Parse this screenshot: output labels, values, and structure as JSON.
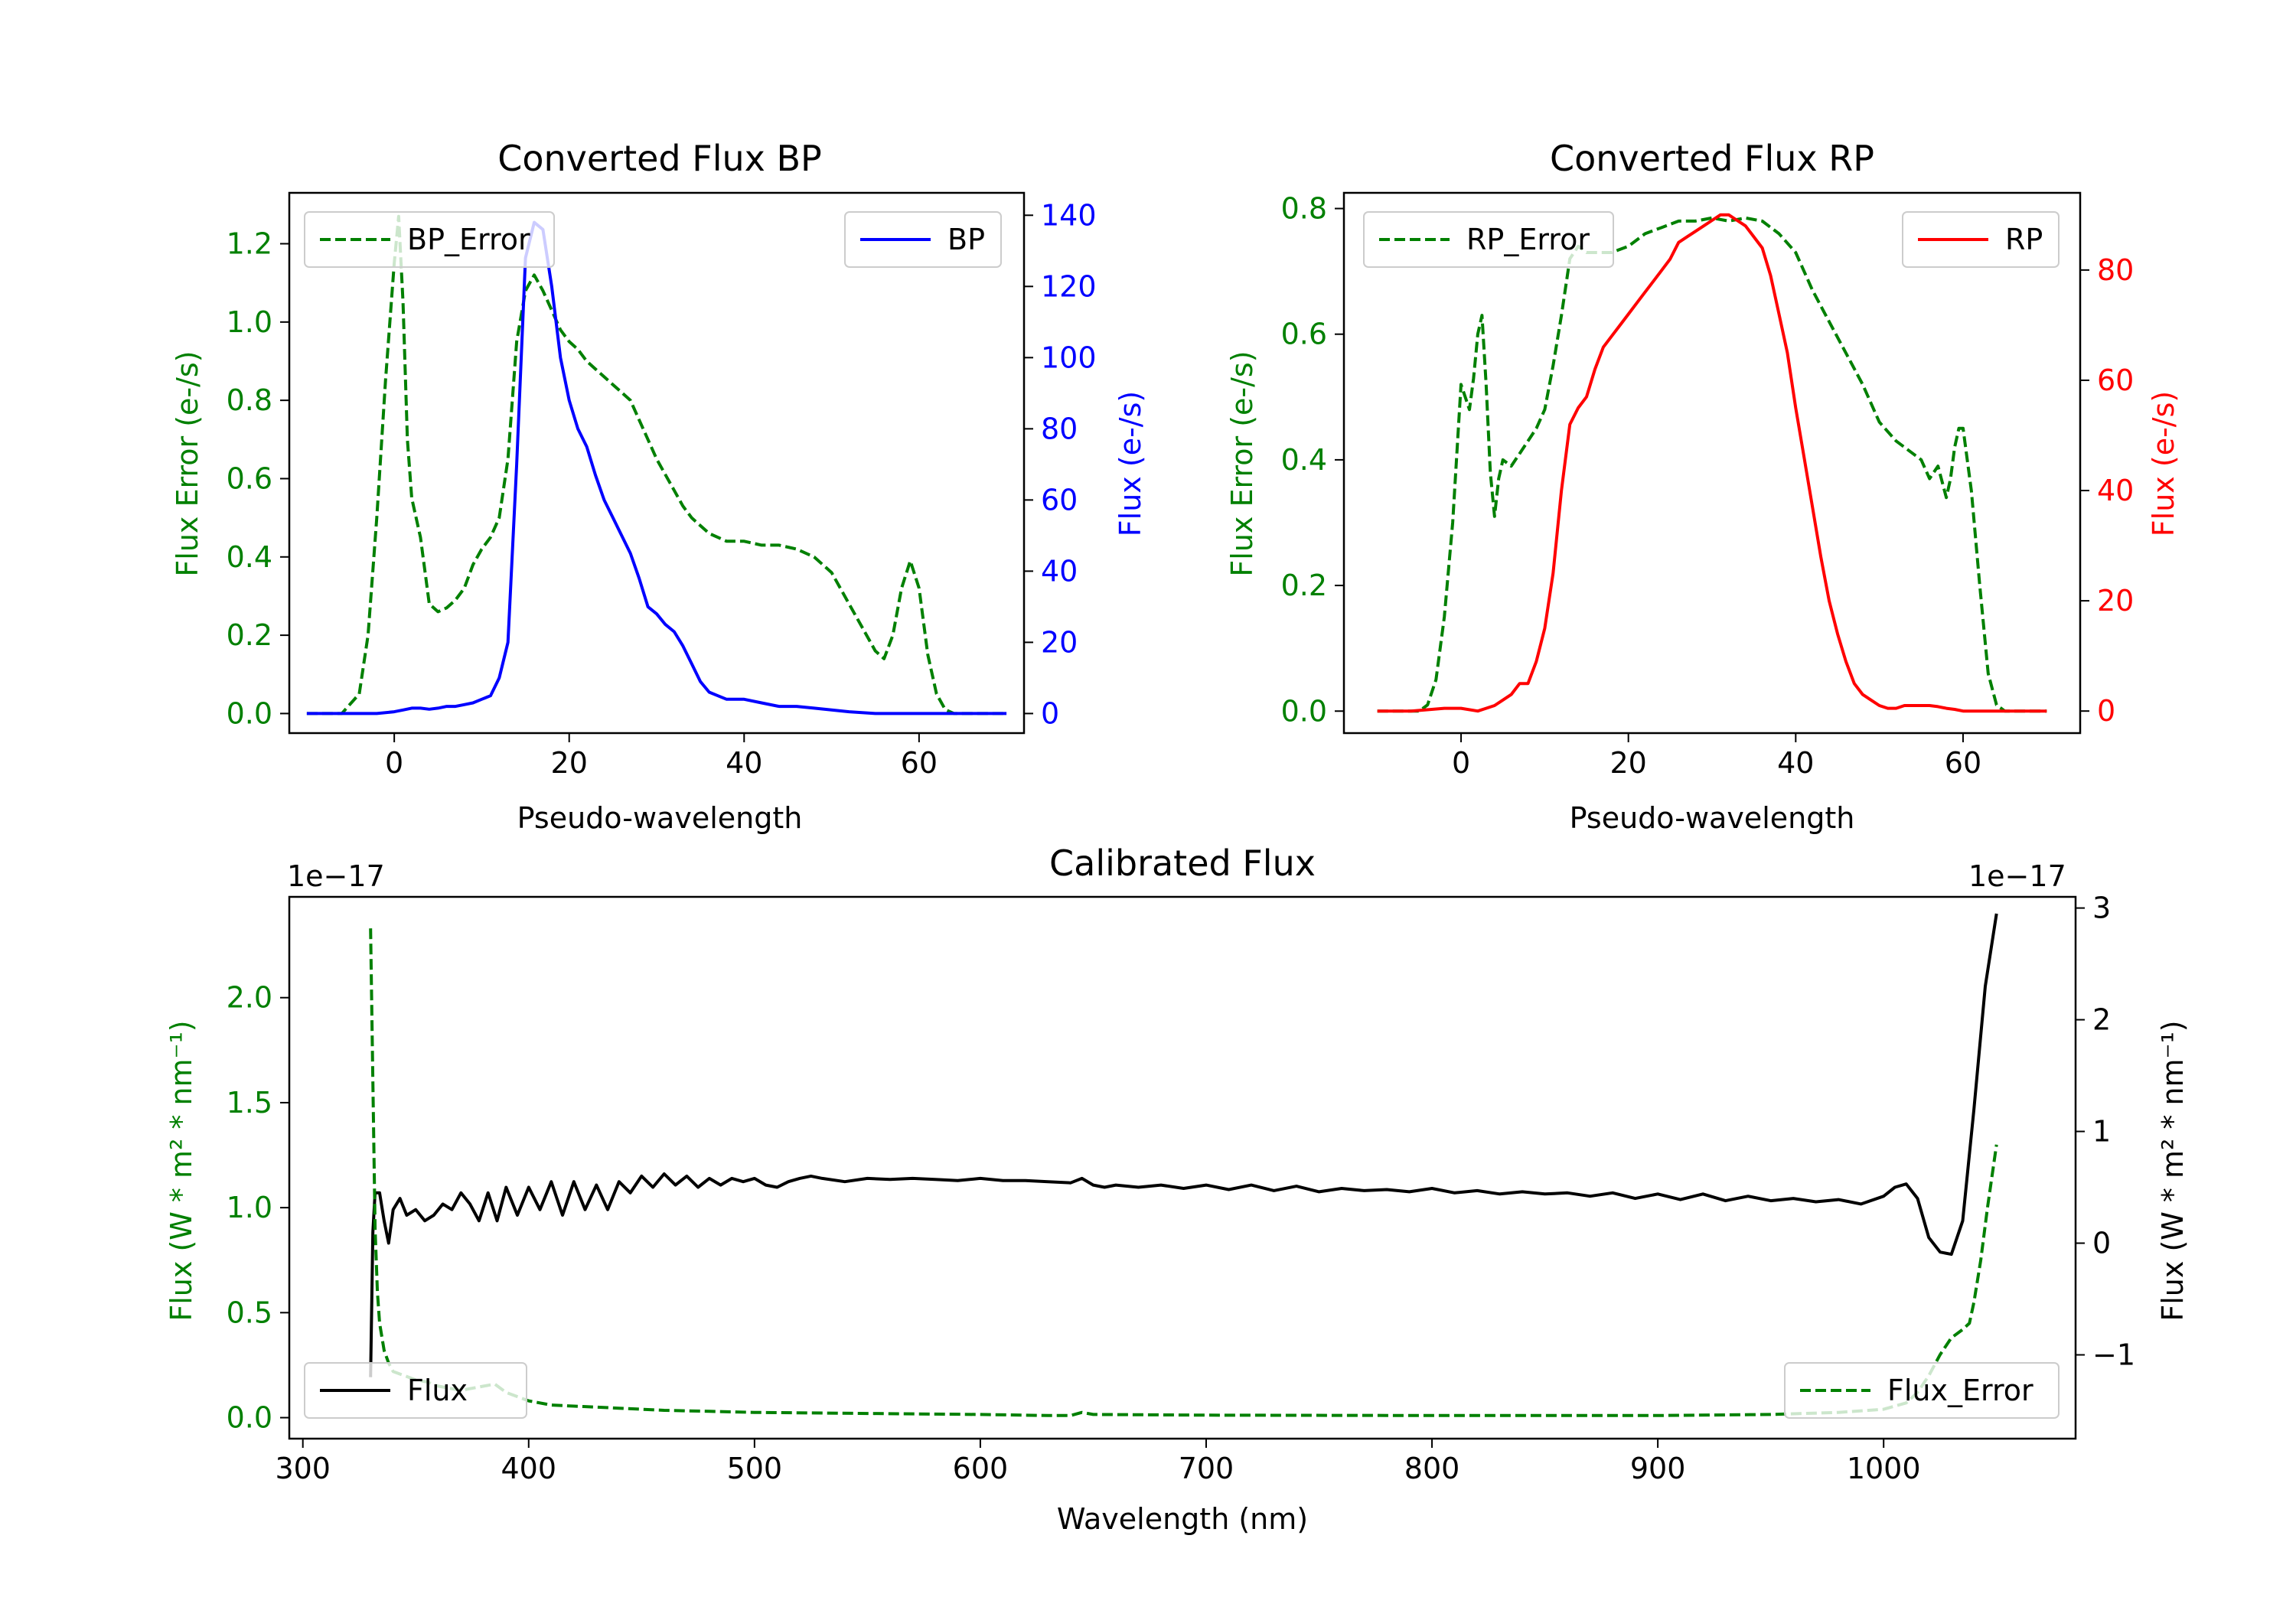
{
  "figure": {
    "background": "#ffffff"
  },
  "chart_data": [
    {
      "type": "line",
      "title": "Converted Flux BP",
      "xlabel": "Pseudo-wavelength",
      "ylabel_left": "Flux Error (e-/s)",
      "ylabel_right": "Flux (e-/s)",
      "xlim": [
        -12,
        72
      ],
      "ylim_left": [
        -0.05,
        1.33
      ],
      "ylim_right": [
        -5.5,
        146.3
      ],
      "xticks": [
        0,
        20,
        40,
        60
      ],
      "xtick_labels": [
        "0",
        "20",
        "40",
        "60"
      ],
      "yticks_left": [
        0,
        0.2,
        0.4,
        0.6,
        0.8,
        1.0,
        1.2
      ],
      "ytick_labels_left": [
        "0.0",
        "0.2",
        "0.4",
        "0.6",
        "0.8",
        "1.0",
        "1.2"
      ],
      "yticks_right": [
        0,
        20,
        40,
        60,
        80,
        100,
        120,
        140
      ],
      "ytick_labels_right": [
        "0",
        "20",
        "40",
        "60",
        "80",
        "100",
        "120",
        "140"
      ],
      "left_color": "#008000",
      "right_color": "#0000ff",
      "grid": false,
      "series": [
        {
          "name": "BP_Error",
          "axis": "left",
          "color": "#008000",
          "style": "dashed",
          "legend": "top-left",
          "x": [
            -10,
            -6,
            -4,
            -3,
            -2,
            -1,
            0,
            0.5,
            1,
            1.5,
            2,
            3,
            4,
            5,
            6,
            7,
            8,
            9,
            10,
            11,
            12,
            13,
            14,
            15,
            16,
            17,
            18,
            19,
            20,
            21,
            22,
            23,
            24,
            25,
            26,
            27,
            28,
            29,
            30,
            31,
            32,
            33,
            34,
            35,
            36,
            37,
            38,
            40,
            42,
            44,
            46,
            48,
            50,
            52,
            54,
            55,
            56,
            57,
            58,
            59,
            60,
            61,
            62,
            63,
            64,
            65,
            66,
            70
          ],
          "y": [
            0,
            0,
            0.05,
            0.2,
            0.5,
            0.85,
            1.15,
            1.27,
            1.05,
            0.7,
            0.55,
            0.45,
            0.28,
            0.26,
            0.27,
            0.29,
            0.32,
            0.38,
            0.42,
            0.45,
            0.5,
            0.65,
            0.95,
            1.08,
            1.12,
            1.08,
            1.03,
            0.98,
            0.95,
            0.93,
            0.9,
            0.88,
            0.86,
            0.84,
            0.82,
            0.8,
            0.75,
            0.7,
            0.65,
            0.61,
            0.57,
            0.53,
            0.5,
            0.48,
            0.46,
            0.45,
            0.44,
            0.44,
            0.43,
            0.43,
            0.42,
            0.4,
            0.36,
            0.28,
            0.2,
            0.16,
            0.14,
            0.2,
            0.32,
            0.39,
            0.32,
            0.15,
            0.05,
            0.01,
            0,
            0,
            0,
            0
          ]
        },
        {
          "name": "BP",
          "axis": "right",
          "color": "#0000ff",
          "style": "solid",
          "legend": "top-right",
          "x": [
            -10,
            -5,
            -2,
            0,
            1,
            2,
            3,
            4,
            5,
            6,
            7,
            8,
            9,
            10,
            11,
            12,
            13,
            14,
            15,
            16,
            17,
            18,
            19,
            20,
            21,
            22,
            23,
            24,
            25,
            26,
            27,
            28,
            29,
            30,
            31,
            32,
            33,
            34,
            35,
            36,
            37,
            38,
            40,
            42,
            44,
            46,
            48,
            50,
            52,
            55,
            58,
            60,
            62,
            65,
            70
          ],
          "y": [
            0,
            0,
            0,
            0.5,
            1,
            1.5,
            1.5,
            1.2,
            1.5,
            2,
            2,
            2.5,
            3,
            4,
            5,
            10,
            20,
            70,
            128,
            138,
            136,
            120,
            100,
            88,
            80,
            75,
            67,
            60,
            55,
            50,
            45,
            38,
            30,
            28,
            25,
            23,
            19,
            14,
            9,
            6,
            5,
            4,
            4,
            3,
            2,
            2,
            1.5,
            1,
            0.5,
            0,
            0,
            0,
            0,
            0,
            0
          ]
        }
      ]
    },
    {
      "type": "line",
      "title": "Converted Flux RP",
      "xlabel": "Pseudo-wavelength",
      "ylabel_left": "Flux Error (e-/s)",
      "ylabel_right": "Flux (e-/s)",
      "xlim": [
        -14,
        74
      ],
      "ylim_left": [
        -0.035,
        0.825
      ],
      "ylim_right": [
        -4,
        94
      ],
      "xticks": [
        0,
        20,
        40,
        60
      ],
      "xtick_labels": [
        "0",
        "20",
        "40",
        "60"
      ],
      "yticks_left": [
        0,
        0.2,
        0.4,
        0.6,
        0.8
      ],
      "ytick_labels_left": [
        "0.0",
        "0.2",
        "0.4",
        "0.6",
        "0.8"
      ],
      "yticks_right": [
        0,
        20,
        40,
        60,
        80
      ],
      "ytick_labels_right": [
        "0",
        "20",
        "40",
        "60",
        "80"
      ],
      "left_color": "#008000",
      "right_color": "#ff0000",
      "grid": false,
      "series": [
        {
          "name": "RP_Error",
          "axis": "left",
          "color": "#008000",
          "style": "dashed",
          "legend": "top-left",
          "x": [
            -10,
            -5,
            -4,
            -3,
            -2,
            -1,
            0,
            0.5,
            1,
            1.5,
            2,
            2.5,
            3,
            3.5,
            4,
            4.5,
            5,
            6,
            7,
            8,
            9,
            10,
            11,
            12,
            13,
            14,
            15,
            16,
            18,
            20,
            22,
            24,
            26,
            28,
            30,
            32,
            34,
            36,
            38,
            40,
            42,
            44,
            46,
            48,
            50,
            52,
            54,
            55,
            56,
            57,
            58,
            58.5,
            59,
            59.5,
            60,
            61,
            62,
            63,
            64,
            65,
            66,
            70
          ],
          "y": [
            0,
            0,
            0.01,
            0.05,
            0.15,
            0.3,
            0.52,
            0.5,
            0.48,
            0.53,
            0.6,
            0.63,
            0.52,
            0.38,
            0.31,
            0.37,
            0.4,
            0.39,
            0.41,
            0.43,
            0.45,
            0.48,
            0.55,
            0.63,
            0.72,
            0.74,
            0.73,
            0.73,
            0.73,
            0.74,
            0.76,
            0.77,
            0.78,
            0.78,
            0.785,
            0.78,
            0.785,
            0.78,
            0.76,
            0.73,
            0.67,
            0.62,
            0.57,
            0.52,
            0.46,
            0.43,
            0.41,
            0.4,
            0.37,
            0.39,
            0.34,
            0.37,
            0.42,
            0.45,
            0.45,
            0.35,
            0.2,
            0.06,
            0.01,
            0,
            0,
            0
          ]
        },
        {
          "name": "RP",
          "axis": "right",
          "color": "#ff0000",
          "style": "solid",
          "legend": "top-right",
          "x": [
            -10,
            -6,
            -2,
            0,
            2,
            3,
            4,
            5,
            6,
            7,
            8,
            9,
            10,
            11,
            12,
            13,
            14,
            15,
            16,
            17,
            18,
            19,
            20,
            21,
            22,
            23,
            24,
            25,
            26,
            27,
            28,
            29,
            30,
            31,
            32,
            33,
            34,
            35,
            36,
            37,
            38,
            39,
            40,
            41,
            42,
            43,
            44,
            45,
            46,
            47,
            48,
            49,
            50,
            51,
            52,
            53,
            54,
            55,
            56,
            57,
            58,
            59,
            60,
            61,
            62,
            64,
            66,
            70
          ],
          "y": [
            0,
            0,
            0.5,
            0.5,
            0,
            0.5,
            1,
            2,
            3,
            5,
            5,
            9,
            15,
            25,
            40,
            52,
            55,
            57,
            62,
            66,
            68,
            70,
            72,
            74,
            76,
            78,
            80,
            82,
            85,
            86,
            87,
            88,
            89,
            90,
            90,
            89,
            88,
            86,
            84,
            79,
            72,
            65,
            55,
            46,
            37,
            28,
            20,
            14,
            9,
            5,
            3,
            2,
            1,
            0.5,
            0.5,
            1,
            1,
            1,
            1,
            0.8,
            0.5,
            0.3,
            0,
            0,
            0,
            0,
            0,
            0
          ]
        }
      ]
    },
    {
      "type": "line",
      "title": "Calibrated Flux",
      "xlabel": "Wavelength (nm)",
      "ylabel_left": "Flux (W * m² * nm⁻¹)",
      "ylabel_right": "Flux (W * m² * nm⁻¹)",
      "offset_left": "1e−17",
      "offset_right": "1e−17",
      "xlim": [
        294,
        1085
      ],
      "ylim_left": [
        -0.1,
        2.48
      ],
      "ylim_right": [
        -1.75,
        3.1
      ],
      "xticks": [
        300,
        400,
        500,
        600,
        700,
        800,
        900,
        1000
      ],
      "xtick_labels": [
        "300",
        "400",
        "500",
        "600",
        "700",
        "800",
        "900",
        "1000"
      ],
      "yticks_left": [
        0,
        0.5,
        1.0,
        1.5,
        2.0
      ],
      "ytick_labels_left": [
        "0.0",
        "0.5",
        "1.0",
        "1.5",
        "2.0"
      ],
      "yticks_right": [
        -1,
        0,
        1,
        2,
        3
      ],
      "ytick_labels_right": [
        "−1",
        "0",
        "1",
        "2",
        "3"
      ],
      "left_color": "#008000",
      "right_color": "#000000",
      "grid": false,
      "series": [
        {
          "name": "Flux",
          "axis": "right",
          "color": "#000000",
          "style": "solid",
          "legend": "bottom-left",
          "x": [
            330,
            331,
            332,
            334,
            336,
            338,
            340,
            343,
            346,
            350,
            354,
            358,
            362,
            366,
            370,
            374,
            378,
            382,
            386,
            390,
            395,
            400,
            405,
            410,
            415,
            420,
            425,
            430,
            435,
            440,
            445,
            450,
            455,
            460,
            465,
            470,
            475,
            480,
            485,
            490,
            495,
            500,
            505,
            510,
            515,
            520,
            525,
            530,
            540,
            550,
            560,
            570,
            580,
            590,
            600,
            610,
            620,
            630,
            640,
            645,
            650,
            655,
            660,
            670,
            680,
            690,
            700,
            710,
            720,
            730,
            740,
            750,
            760,
            770,
            780,
            790,
            800,
            810,
            820,
            830,
            840,
            850,
            860,
            870,
            880,
            890,
            900,
            910,
            920,
            930,
            940,
            950,
            960,
            970,
            980,
            990,
            1000,
            1005,
            1010,
            1015,
            1020,
            1025,
            1030,
            1035,
            1040,
            1045,
            1050
          ],
          "y": [
            -1.2,
            0.1,
            0.45,
            0.45,
            0.2,
            0.0,
            0.3,
            0.4,
            0.25,
            0.3,
            0.2,
            0.25,
            0.35,
            0.3,
            0.45,
            0.35,
            0.2,
            0.45,
            0.2,
            0.5,
            0.25,
            0.5,
            0.3,
            0.55,
            0.25,
            0.55,
            0.3,
            0.52,
            0.3,
            0.55,
            0.45,
            0.6,
            0.5,
            0.62,
            0.52,
            0.6,
            0.5,
            0.58,
            0.52,
            0.58,
            0.55,
            0.58,
            0.52,
            0.5,
            0.55,
            0.58,
            0.6,
            0.58,
            0.55,
            0.58,
            0.57,
            0.58,
            0.57,
            0.56,
            0.58,
            0.56,
            0.56,
            0.55,
            0.54,
            0.58,
            0.52,
            0.5,
            0.52,
            0.5,
            0.52,
            0.49,
            0.52,
            0.48,
            0.52,
            0.47,
            0.51,
            0.46,
            0.49,
            0.47,
            0.48,
            0.46,
            0.49,
            0.45,
            0.47,
            0.44,
            0.46,
            0.44,
            0.45,
            0.42,
            0.45,
            0.4,
            0.44,
            0.39,
            0.44,
            0.38,
            0.42,
            0.38,
            0.4,
            0.37,
            0.39,
            0.35,
            0.42,
            0.5,
            0.53,
            0.4,
            0.05,
            -0.08,
            -0.1,
            0.2,
            1.2,
            2.3,
            2.95
          ]
        },
        {
          "name": "Flux_Error",
          "axis": "left",
          "color": "#008000",
          "style": "dashed",
          "legend": "bottom-right",
          "x": [
            330,
            331,
            332,
            333,
            334,
            336,
            338,
            340,
            345,
            350,
            355,
            360,
            370,
            380,
            385,
            390,
            400,
            410,
            420,
            430,
            440,
            450,
            460,
            480,
            500,
            550,
            600,
            630,
            640,
            645,
            650,
            700,
            800,
            900,
            950,
            980,
            1000,
            1010,
            1015,
            1020,
            1025,
            1030,
            1035,
            1038,
            1040,
            1043,
            1046,
            1050
          ],
          "y": [
            2.33,
            1.6,
            0.9,
            0.6,
            0.45,
            0.32,
            0.26,
            0.22,
            0.2,
            0.18,
            0.17,
            0.15,
            0.13,
            0.15,
            0.16,
            0.12,
            0.08,
            0.06,
            0.055,
            0.05,
            0.045,
            0.04,
            0.035,
            0.03,
            0.025,
            0.02,
            0.015,
            0.01,
            0.01,
            0.025,
            0.015,
            0.012,
            0.01,
            0.01,
            0.015,
            0.025,
            0.04,
            0.07,
            0.12,
            0.2,
            0.3,
            0.38,
            0.42,
            0.45,
            0.55,
            0.75,
            1.0,
            1.3
          ]
        }
      ]
    }
  ]
}
